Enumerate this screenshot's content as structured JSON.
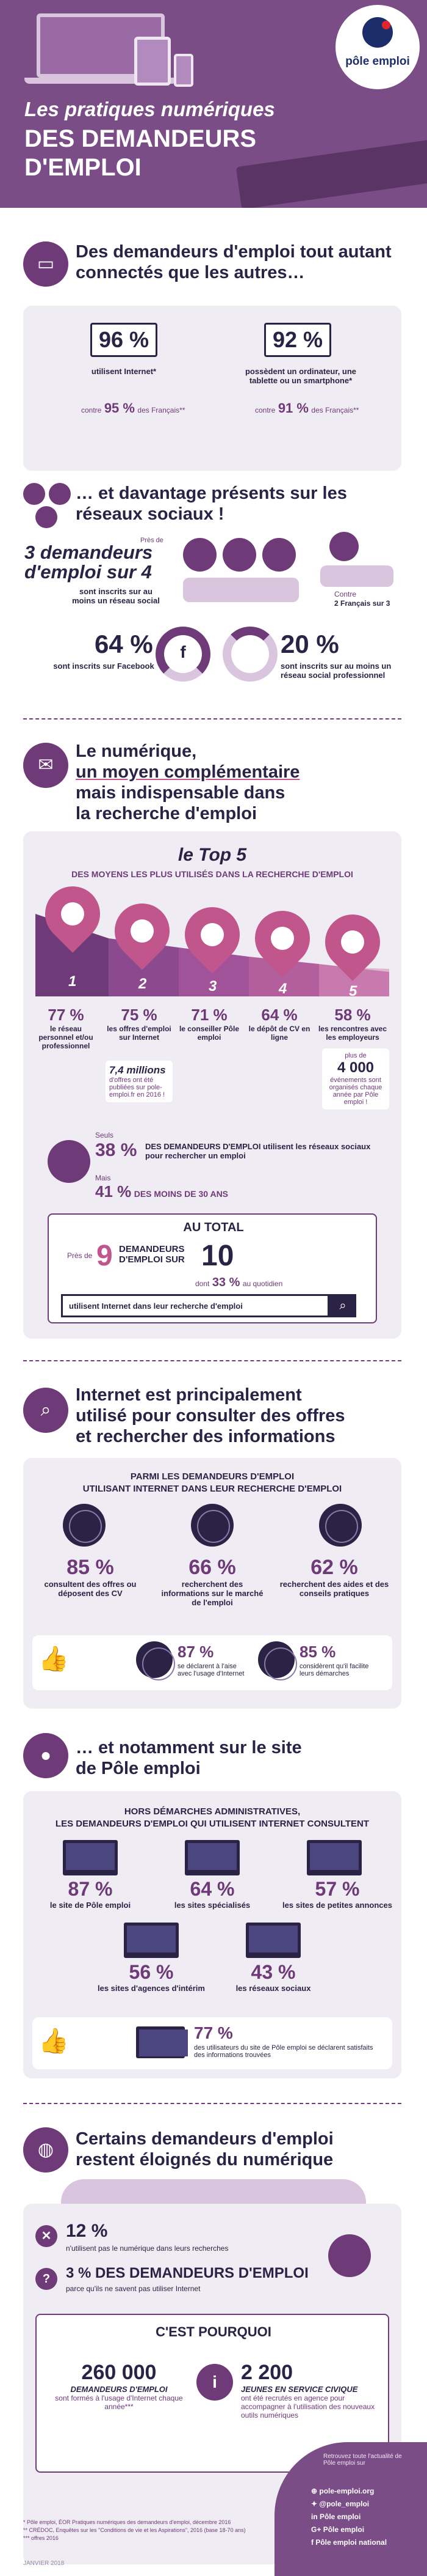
{
  "header": {
    "title_line1": "Les pratiques numériques",
    "title_line2": "DES DEMANDEURS",
    "title_line3": "D'EMPLOI",
    "logo_text": "pôle emploi"
  },
  "section1": {
    "title": "Des demandeurs d'emploi tout autant connectés que les autres…",
    "internet_pct": "96 %",
    "internet_label": "utilisent Internet*",
    "internet_contre": "contre",
    "internet_french_pct": "95 %",
    "internet_french_label": "des Français**",
    "device_pct": "92 %",
    "device_label": "possèdent un ordinateur, une tablette ou un smartphone*",
    "device_contre": "contre",
    "device_french_pct": "91 %",
    "device_french_label": "des Français**"
  },
  "section2": {
    "title": "… et davantage présents sur les réseaux sociaux !",
    "pres_de": "Près de",
    "big_stat": "3 demandeurs d'emploi sur 4",
    "big_stat_label": "sont inscrits sur au moins un réseau social",
    "contre_label": "Contre",
    "contre_value": "2 Français sur 3",
    "facebook_pct": "64 %",
    "facebook_label": "sont inscrits sur Facebook",
    "pro_pct": "20 %",
    "pro_label": "sont inscrits sur au moins un réseau social professionnel"
  },
  "section3": {
    "title_line1": "Le numérique,",
    "title_line2": "un moyen complémentaire",
    "title_line3": "mais indispensable dans",
    "title_line4": "la recherche d'emploi",
    "top5_title": "le Top 5",
    "top5_subtitle": "DES MOYENS LES PLUS UTILISÉS DANS LA RECHERCHE D'EMPLOI",
    "items": [
      {
        "num": "1",
        "pct": "77 %",
        "label": "le réseau personnel et/ou professionnel"
      },
      {
        "num": "2",
        "pct": "75 %",
        "label": "les offres d'emploi sur Internet"
      },
      {
        "num": "3",
        "pct": "71 %",
        "label": "le conseiller Pôle emploi"
      },
      {
        "num": "4",
        "pct": "64 %",
        "label": "le dépôt de CV en ligne"
      },
      {
        "num": "5",
        "pct": "58 %",
        "label": "les rencontres avec les employeurs"
      }
    ],
    "millions_value": "7,4 millions",
    "millions_label": "d'offres ont été publiées sur pole-emploi.fr en 2016 !",
    "events_plus": "plus de",
    "events_value": "4 000",
    "events_label": "événements sont organisés chaque année par Pôle emploi !",
    "seuls_label": "Seuls",
    "social_pct": "38 %",
    "social_label": "DES DEMANDEURS D'EMPLOI utilisent les réseaux sociaux pour rechercher un emploi",
    "mais_label": "Mais",
    "young_pct": "41 %",
    "young_label": "DES MOINS DE 30 ANS",
    "total_title": "AU TOTAL",
    "total_pres": "Près de",
    "total_num": "9",
    "total_label": "DEMANDEURS D'EMPLOI SUR",
    "total_den": "10",
    "daily_label_prefix": "dont",
    "daily_pct": "33 %",
    "daily_label": "au quotidien",
    "search_text": "utilisent Internet dans leur recherche d'emploi"
  },
  "section4": {
    "title_line1": "Internet est principalement",
    "title_line2": "utilisé pour consulter des offres",
    "title_line3": "et rechercher des informations",
    "subtitle_line1": "PARMI LES DEMANDEURS D'EMPLOI",
    "subtitle_line2": "UTILISANT INTERNET DANS LEUR RECHERCHE D'EMPLOI",
    "stats": [
      {
        "pct": "85 %",
        "label": "consultent des offres ou déposent des CV"
      },
      {
        "pct": "66 %",
        "label": "recherchent des informations sur le marché de l'emploi"
      },
      {
        "pct": "62 %",
        "label": "recherchent des aides et des conseils pratiques"
      }
    ],
    "ease_pct": "87 %",
    "ease_label": "se déclarent à l'aise avec l'usage d'Internet",
    "facilitate_pct": "85 %",
    "facilitate_label": "considèrent qu'il facilite leurs démarches"
  },
  "section5": {
    "title_line1": "… et notamment sur le site",
    "title_line2": "de Pôle emploi",
    "subtitle_line1": "HORS DÉMARCHES ADMINISTRATIVES,",
    "subtitle_line2": "LES DEMANDEURS D'EMPLOI QUI UTILISENT INTERNET CONSULTENT",
    "sites": [
      {
        "pct": "87 %",
        "label": "le site de Pôle emploi"
      },
      {
        "pct": "64 %",
        "label": "les sites spécialisés"
      },
      {
        "pct": "57 %",
        "label": "les sites de petites annonces"
      },
      {
        "pct": "56 %",
        "label": "les sites d'agences d'intérim"
      },
      {
        "pct": "43 %",
        "label": "les réseaux sociaux"
      }
    ],
    "satisfied_pct": "77 %",
    "satisfied_label": "des utilisateurs du site de Pôle emploi se déclarent satisfaits des informations trouvées"
  },
  "section6": {
    "title_line1": "Certains demandeurs d'emploi",
    "title_line2": "restent éloignés du numérique",
    "stat1_pct": "12 %",
    "stat1_label": "n'utilisent pas le numérique dans leurs recherches",
    "stat2_pct": "3 % DES DEMANDEURS D'EMPLOI",
    "stat2_label": "parce qu'ils ne savent pas utiliser Internet",
    "why_title": "C'EST POURQUOI",
    "formed_value": "260 000",
    "formed_label1": "DEMANDEURS D'EMPLOI",
    "formed_label2": "sont formés à l'usage d'Internet chaque année***",
    "civic_value": "2 200",
    "civic_label1": "JEUNES EN SERVICE CIVIQUE",
    "civic_label2": "ont été recrutés en agence pour accompagner à l'utilisation des nouveaux outils numériques"
  },
  "footer": {
    "follow_label": "Retrouvez toute l'actualité de Pôle emploi sur",
    "links": [
      "pole-emploi.org",
      "@pole_emploi",
      "Pôle emploi",
      "Pôle emploi",
      "Pôle emploi national"
    ],
    "note1": "* Pôle emploi, ÉOR Pratiques numériques des demandeurs d'emploi, décembre 2016",
    "note2": "** CRÉDOC, Enquêtes sur les \"Conditions de vie et les Aspirations\", 2016 (base 18-70 ans)",
    "note3": "*** offres 2016",
    "date": "JANVIER 2018"
  }
}
